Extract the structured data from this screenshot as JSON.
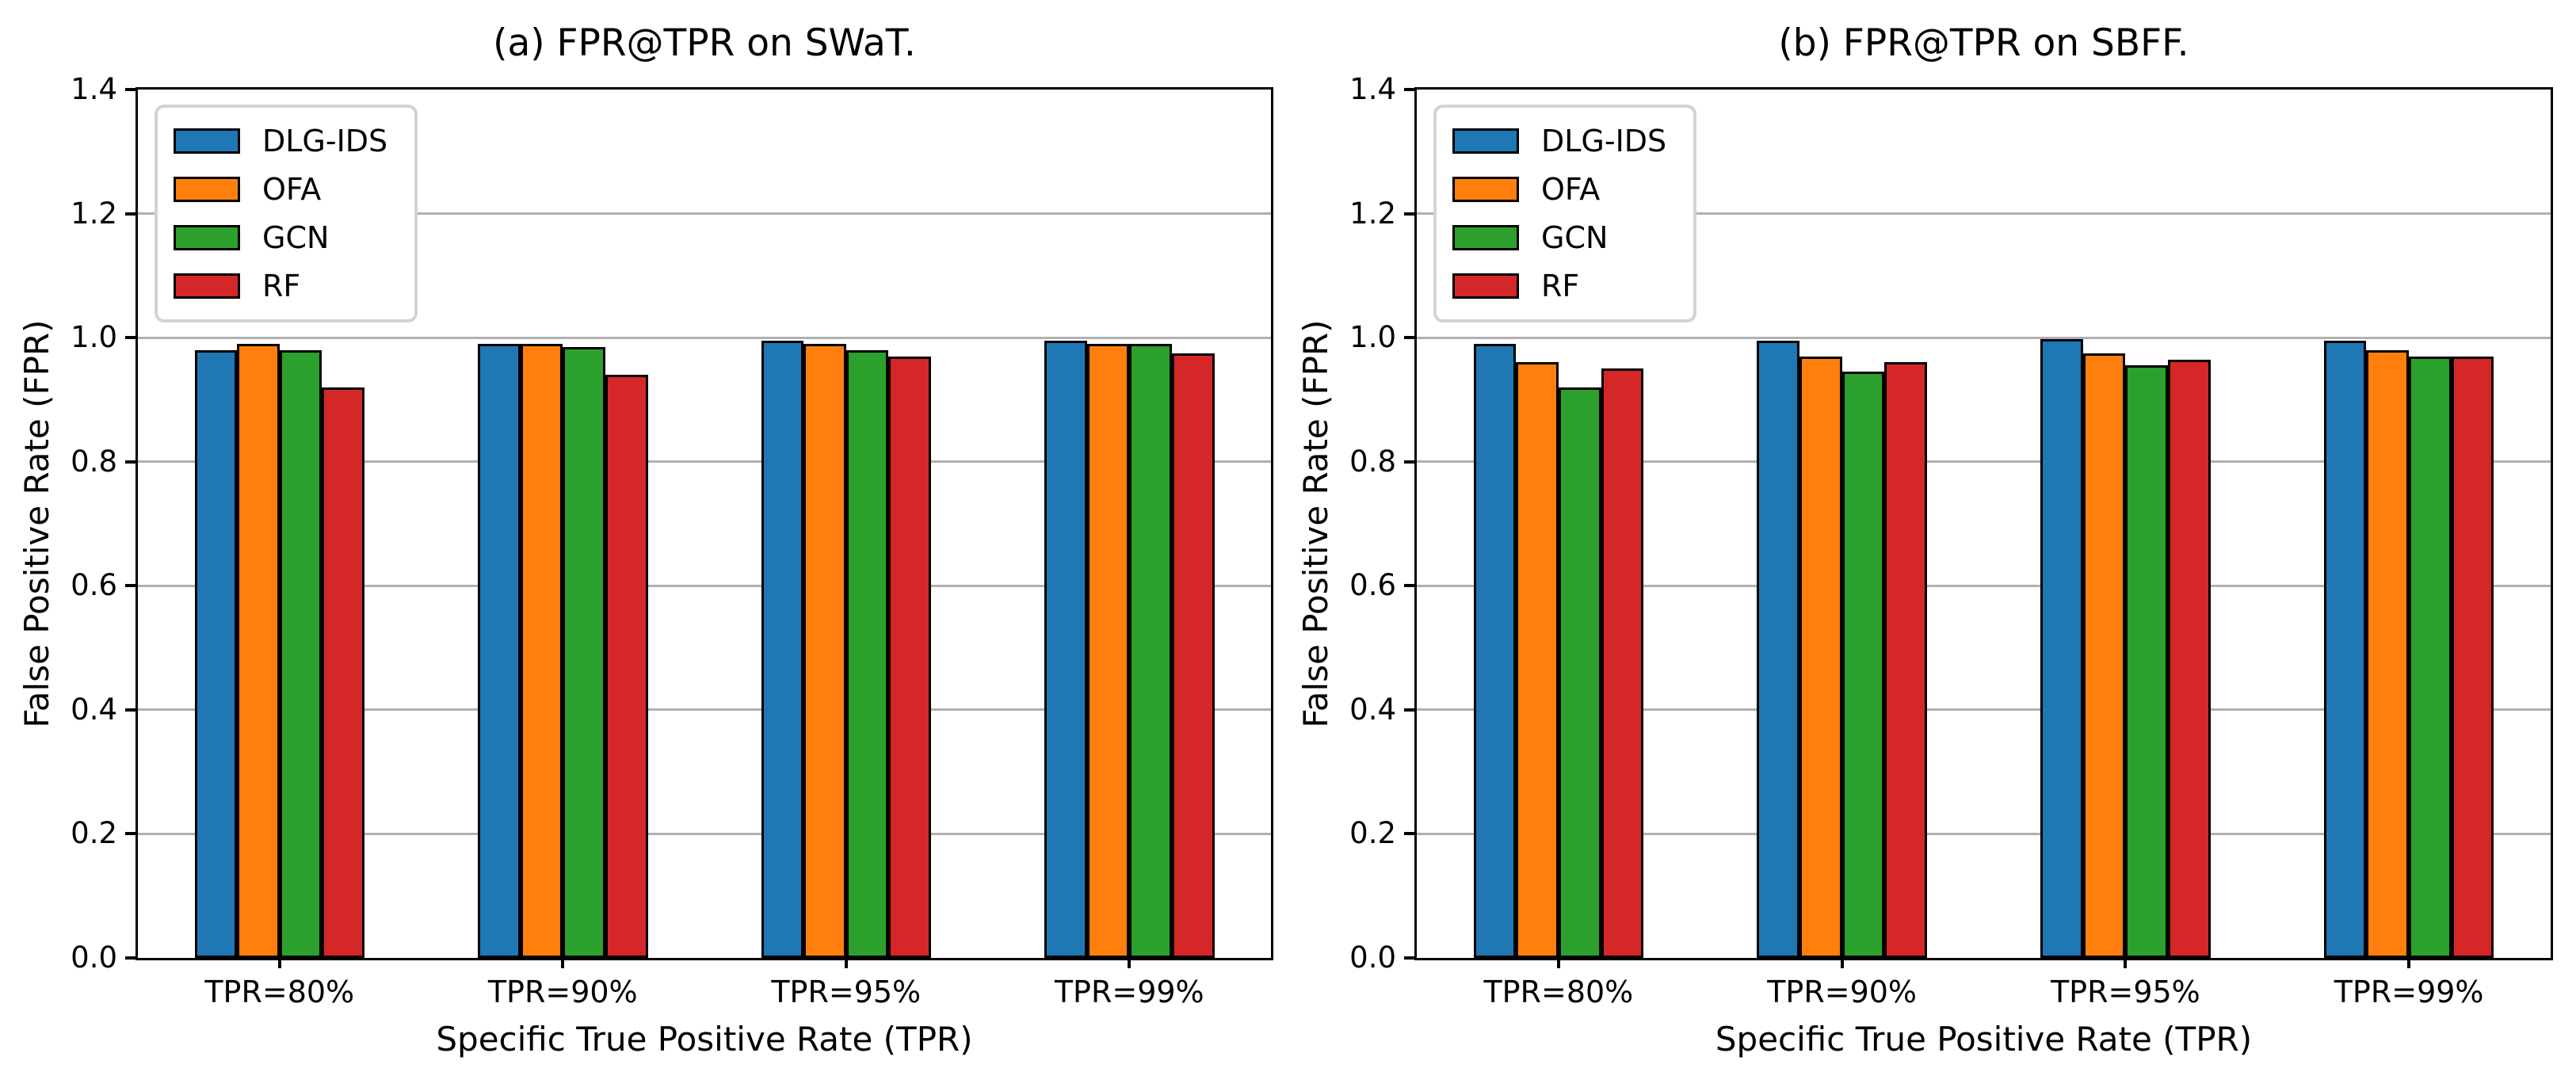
{
  "figure": {
    "background": "#ffffff"
  },
  "styles": {
    "bar_edge_color": "#000000",
    "grid_color": "#b0b0b0",
    "spine_color": "#000000",
    "legend_border_color": "#d3d3d3"
  },
  "chart_data": [
    {
      "type": "bar",
      "title": "(a) FPR@TPR on SWaT.",
      "xlabel": "Specific True Positive Rate (TPR)",
      "ylabel": "False Positive Rate (FPR)",
      "categories": [
        "TPR=80%",
        "TPR=90%",
        "TPR=95%",
        "TPR=99%"
      ],
      "series": [
        {
          "name": "DLG-IDS",
          "color": "#1f77b4",
          "values": [
            0.98,
            0.99,
            0.995,
            0.995
          ]
        },
        {
          "name": "OFA",
          "color": "#ff7f0e",
          "values": [
            0.99,
            0.99,
            0.99,
            0.99
          ]
        },
        {
          "name": "GCN",
          "color": "#2ca02c",
          "values": [
            0.98,
            0.985,
            0.98,
            0.99
          ]
        },
        {
          "name": "RF",
          "color": "#d62728",
          "values": [
            0.92,
            0.94,
            0.97,
            0.975
          ]
        }
      ],
      "ylim": [
        0.0,
        1.4
      ],
      "ytick_labels": [
        "0.0",
        "0.2",
        "0.4",
        "0.6",
        "0.8",
        "1.0",
        "1.2",
        "1.4"
      ],
      "grid": true,
      "legend_position": "upper left"
    },
    {
      "type": "bar",
      "title": "(b) FPR@TPR on SBFF.",
      "xlabel": "Specific True Positive Rate (TPR)",
      "ylabel": "False Positive Rate (FPR)",
      "categories": [
        "TPR=80%",
        "TPR=90%",
        "TPR=95%",
        "TPR=99%"
      ],
      "series": [
        {
          "name": "DLG-IDS",
          "color": "#1f77b4",
          "values": [
            0.99,
            0.995,
            0.998,
            0.995
          ]
        },
        {
          "name": "OFA",
          "color": "#ff7f0e",
          "values": [
            0.96,
            0.97,
            0.975,
            0.98
          ]
        },
        {
          "name": "GCN",
          "color": "#2ca02c",
          "values": [
            0.92,
            0.945,
            0.955,
            0.97
          ]
        },
        {
          "name": "RF",
          "color": "#d62728",
          "values": [
            0.95,
            0.96,
            0.965,
            0.97
          ]
        }
      ],
      "ylim": [
        0.0,
        1.4
      ],
      "ytick_labels": [
        "0.0",
        "0.2",
        "0.4",
        "0.6",
        "0.8",
        "1.0",
        "1.2",
        "1.4"
      ],
      "grid": true,
      "legend_position": "upper left"
    }
  ]
}
